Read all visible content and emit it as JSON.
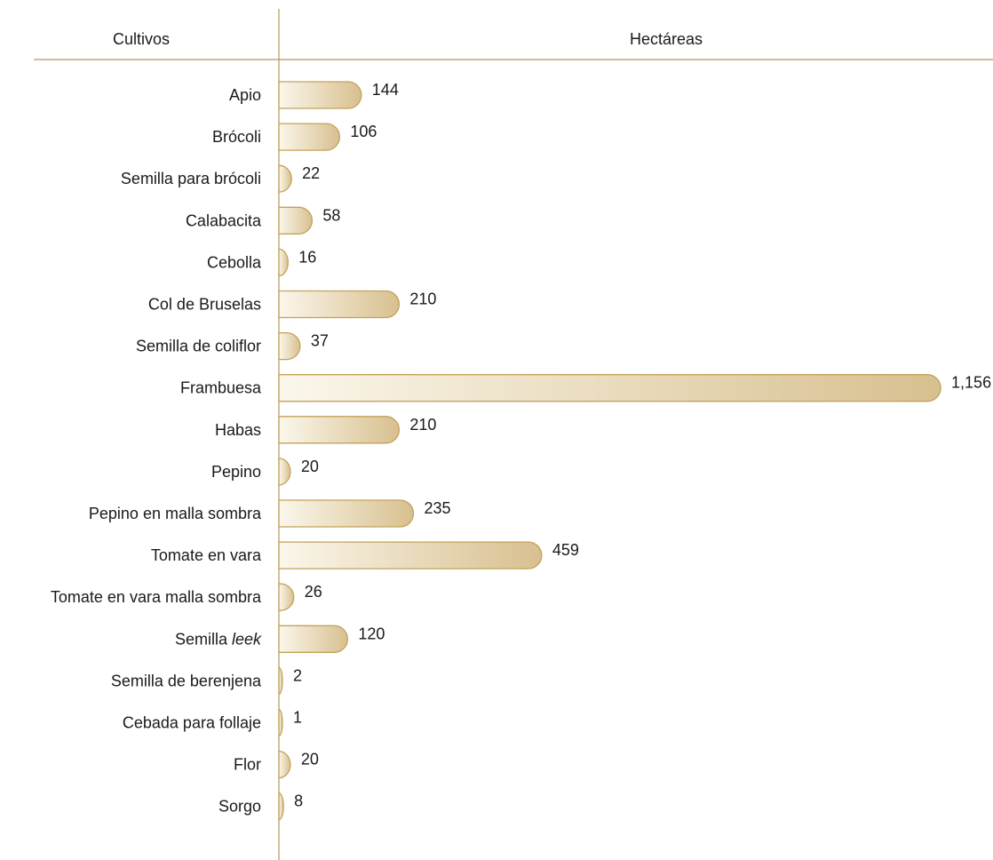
{
  "chart_data": {
    "type": "bar",
    "orientation": "horizontal",
    "headers": {
      "category": "Cultivos",
      "value": "Hectáreas"
    },
    "categories": [
      "Apio",
      "Brócoli",
      "Semilla para brócoli",
      "Calabacita",
      "Cebolla",
      "Col de Bruselas",
      "Semilla de coliflor",
      "Frambuesa",
      "Habas",
      "Pepino",
      "Pepino en malla sombra",
      "Tomate en vara",
      "Tomate en vara malla sombra",
      "Semilla leek",
      "Semilla de berenjena",
      "Cebada para follaje",
      "Flor",
      "Sorgo"
    ],
    "values": [
      144,
      106,
      22,
      58,
      16,
      210,
      37,
      1156,
      210,
      20,
      235,
      459,
      26,
      120,
      2,
      1,
      20,
      8
    ],
    "value_labels": [
      "144",
      "106",
      "22",
      "58",
      "16",
      "210",
      "37",
      "1,156",
      "210",
      "20",
      "235",
      "459",
      "26",
      "120",
      "2",
      "1",
      "20",
      "8"
    ],
    "grid": false,
    "legend": false
  },
  "colors": {
    "accent": "#b39a5a",
    "bar_light": "#fbf7ec",
    "bar_dark": "#d8c08f",
    "bar_outline": "#c2a25a",
    "text": "#1a1a1a"
  }
}
